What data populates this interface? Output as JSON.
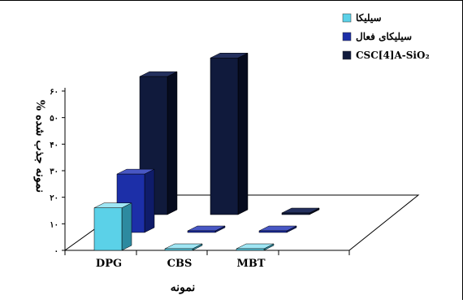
{
  "chart_data": {
    "type": "bar",
    "categories": [
      "DPG",
      "CBS",
      "MBT"
    ],
    "series": [
      {
        "name": "سیلیکا",
        "values": [
          16,
          0,
          0
        ]
      },
      {
        "name": "سیلیکای فعال",
        "values": [
          22,
          0,
          0
        ]
      },
      {
        "name": "CSC[4]A-SiO₂",
        "values": [
          52,
          59,
          0
        ]
      }
    ],
    "ylim": [
      0,
      60
    ],
    "yticks": [
      "۰",
      "۱۰",
      "۲۰",
      "۳۰",
      "۴۰",
      "۵۰",
      "۶۰"
    ],
    "ylabel": "% نمونه جذب شده",
    "xlabel": "نمونه",
    "legend_position": "top-right",
    "colors": {
      "series": [
        "#5bd1e8",
        "#1c2fa8",
        "#101a3c"
      ],
      "sides": [
        "#2d8aa0",
        "#0f1c6a",
        "#060b1e"
      ],
      "tops": [
        "#9fe6f4",
        "#4857c4",
        "#24305e"
      ]
    }
  }
}
